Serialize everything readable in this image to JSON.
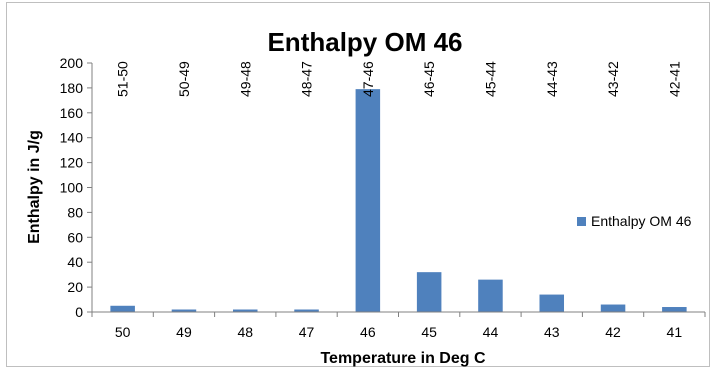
{
  "chart_data": {
    "type": "bar",
    "title": "Enthalpy OM 46",
    "xlabel": "Temperature in Deg C",
    "ylabel": "Enthalpy in J/g",
    "categories": [
      "50",
      "49",
      "48",
      "47",
      "46",
      "45",
      "44",
      "43",
      "42",
      "41"
    ],
    "range_labels": [
      "51-50",
      "50-49",
      "49-48",
      "48-47",
      "47-46",
      "46-45",
      "45-44",
      "44-43",
      "43-42",
      "42-41"
    ],
    "series": [
      {
        "name": "Enthalpy OM 46",
        "values": [
          5,
          2,
          2,
          2,
          179,
          32,
          26,
          14,
          6,
          4
        ]
      }
    ],
    "ylim": [
      0,
      200
    ],
    "yticks": [
      0,
      20,
      40,
      60,
      80,
      100,
      120,
      140,
      160,
      180,
      200
    ],
    "grid": false,
    "legend_position": "right",
    "bar_color": "#4f81bd",
    "axis_color": "#808080"
  }
}
